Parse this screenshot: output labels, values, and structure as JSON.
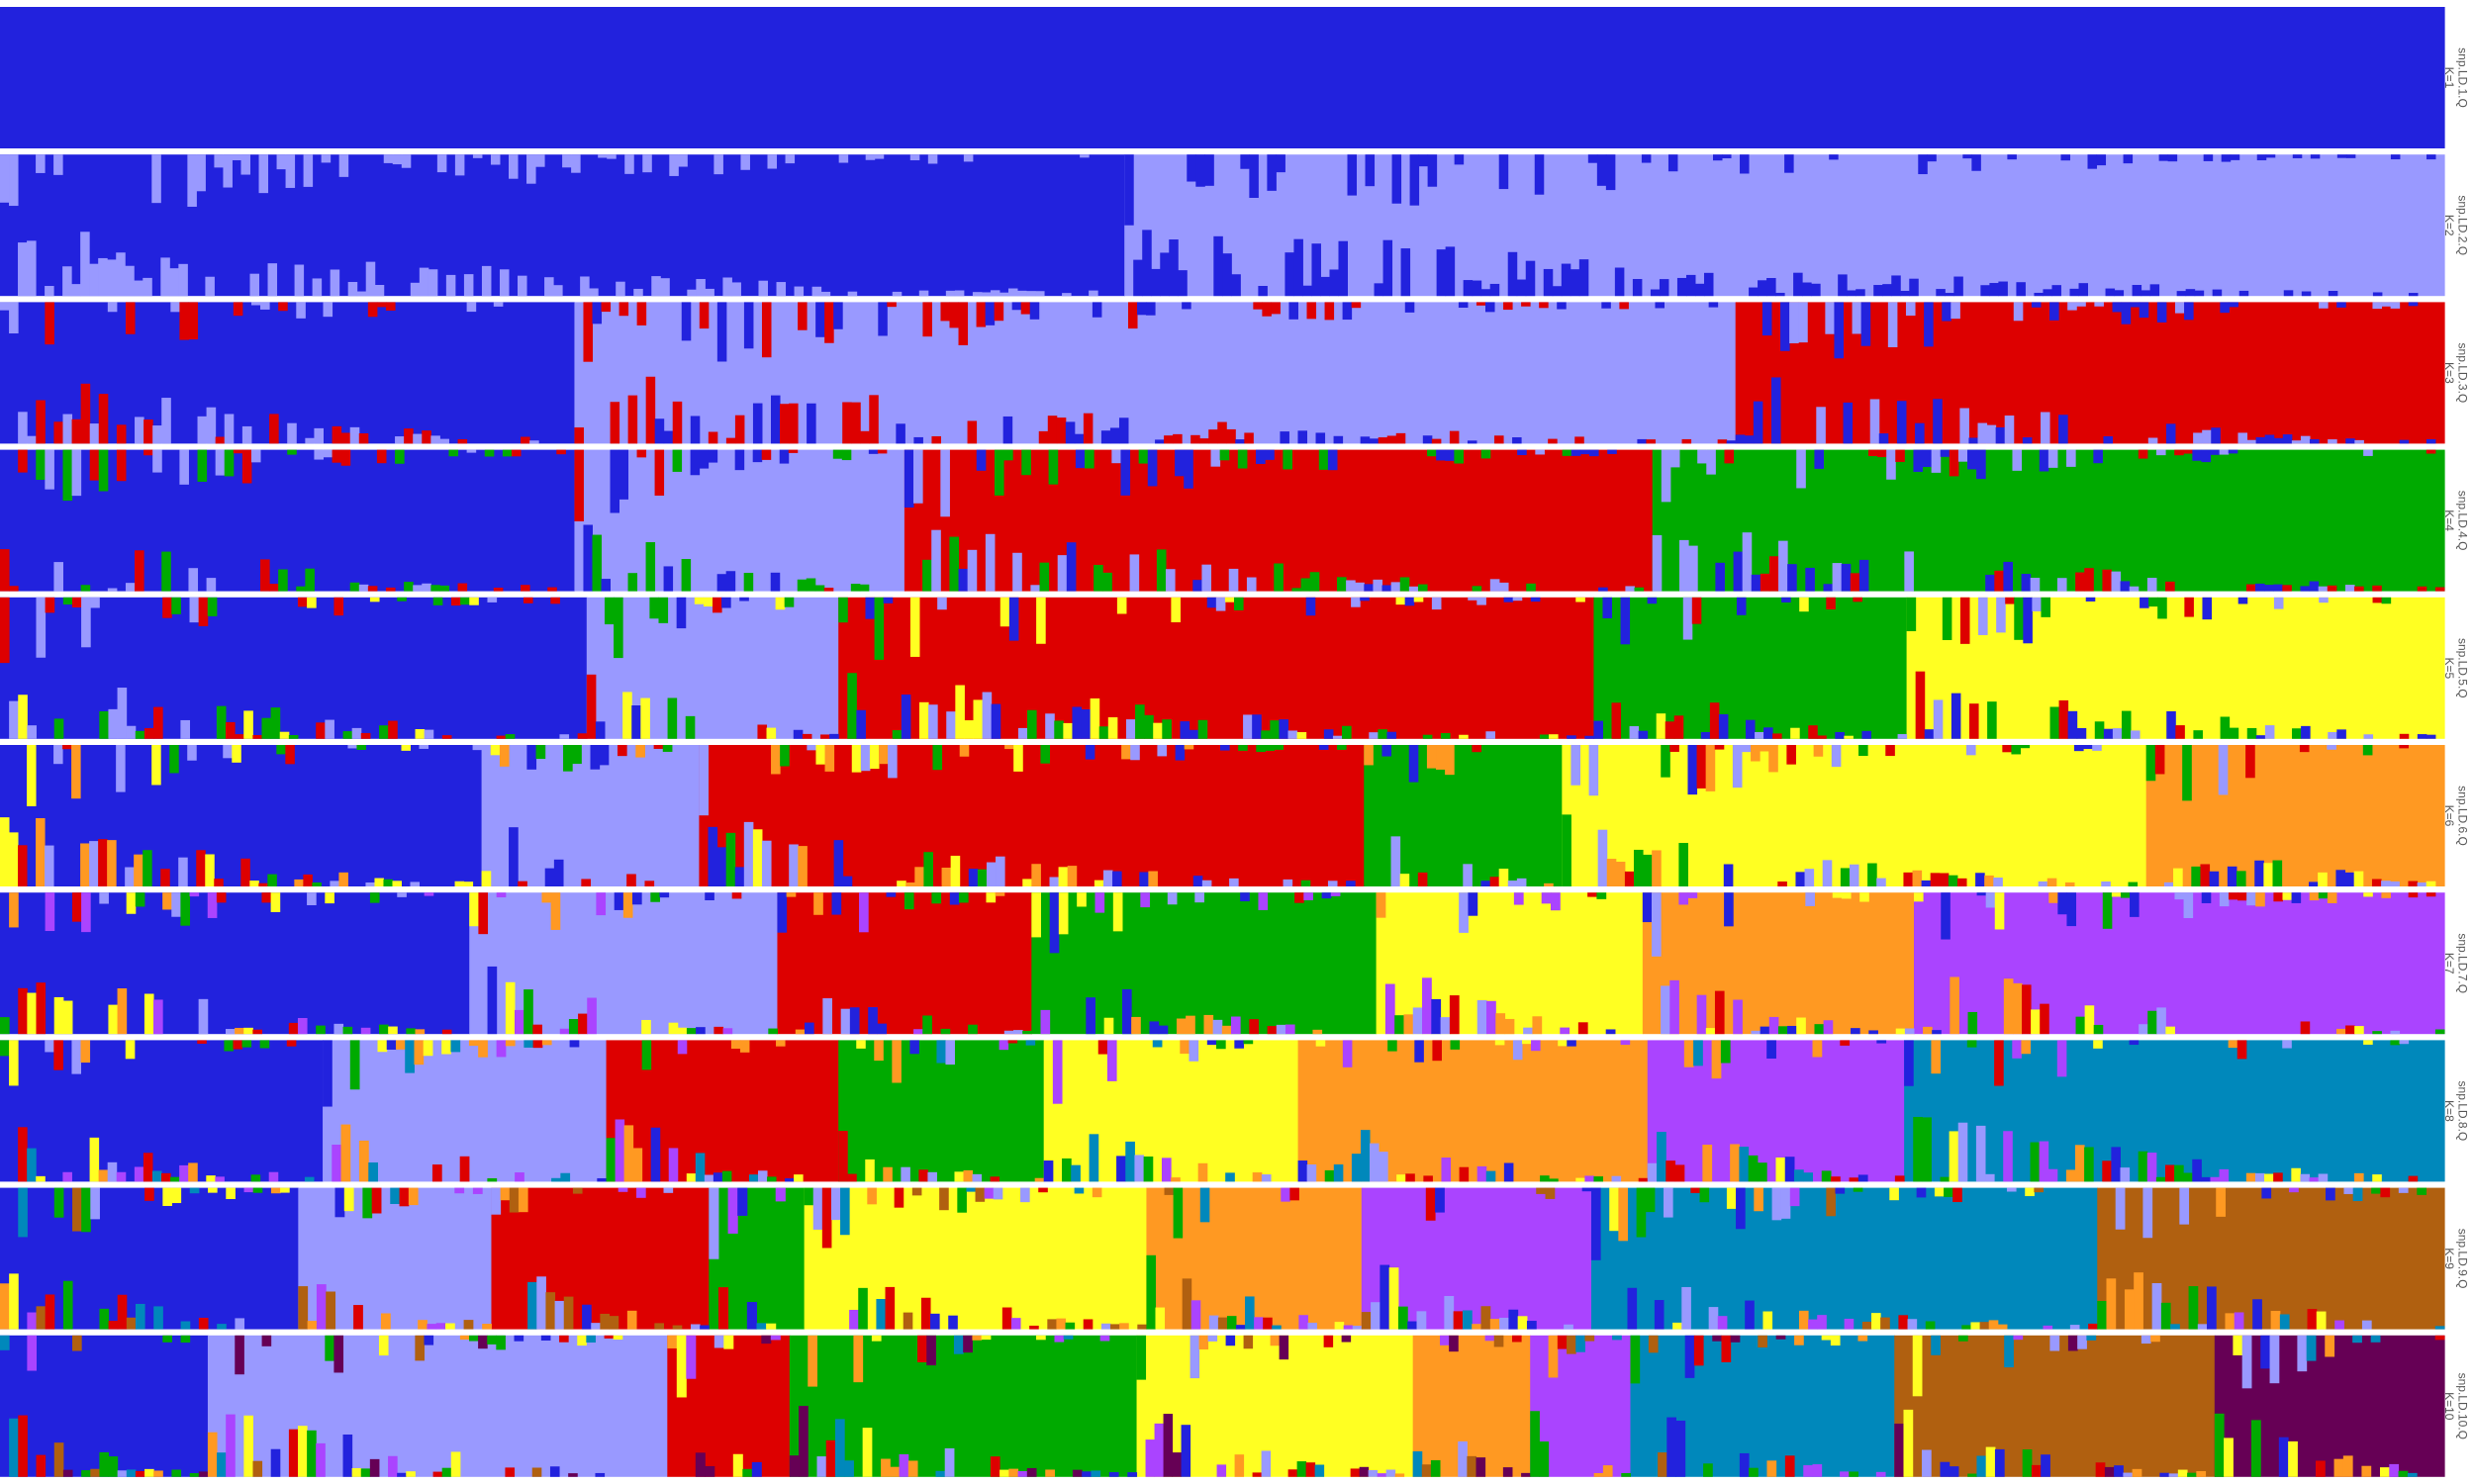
{
  "chart_data": {
    "type": "stacked bar (admixture barplot)",
    "cluster_colors": [
      "#2222dd",
      "#9999ff",
      "#dd0000",
      "#00aa00",
      "#ffff22",
      "#ff9922",
      "#aa44ff",
      "#0088bb",
      "#b06010",
      "#660055"
    ],
    "panels": [
      {
        "file": "snp.LD.1.Q",
        "k": "K=1",
        "segments": [
          {
            "start": 0.0,
            "end": 1.0,
            "cluster": 0
          }
        ]
      },
      {
        "file": "snp.LD.2.Q",
        "k": "K=2",
        "segments": [
          {
            "start": 0.0,
            "end": 0.46,
            "cluster": 0
          },
          {
            "start": 0.46,
            "end": 1.0,
            "cluster": 1
          }
        ]
      },
      {
        "file": "snp.LD.3.Q",
        "k": "K=3",
        "segments": [
          {
            "start": 0.0,
            "end": 0.235,
            "cluster": 0
          },
          {
            "start": 0.235,
            "end": 0.71,
            "cluster": 1
          },
          {
            "start": 0.71,
            "end": 1.0,
            "cluster": 2
          }
        ]
      },
      {
        "file": "snp.LD.4.Q",
        "k": "K=4",
        "segments": [
          {
            "start": 0.0,
            "end": 0.235,
            "cluster": 0
          },
          {
            "start": 0.235,
            "end": 0.37,
            "cluster": 1
          },
          {
            "start": 0.37,
            "end": 0.676,
            "cluster": 2
          },
          {
            "start": 0.676,
            "end": 1.0,
            "cluster": 3
          }
        ]
      },
      {
        "file": "snp.LD.5.Q",
        "k": "K=5",
        "segments": [
          {
            "start": 0.0,
            "end": 0.24,
            "cluster": 0
          },
          {
            "start": 0.24,
            "end": 0.343,
            "cluster": 1
          },
          {
            "start": 0.343,
            "end": 0.652,
            "cluster": 2
          },
          {
            "start": 0.652,
            "end": 0.78,
            "cluster": 3
          },
          {
            "start": 0.78,
            "end": 1.0,
            "cluster": 4
          }
        ]
      },
      {
        "file": "snp.LD.6.Q",
        "k": "K=6",
        "segments": [
          {
            "start": 0.0,
            "end": 0.197,
            "cluster": 0
          },
          {
            "start": 0.197,
            "end": 0.286,
            "cluster": 1
          },
          {
            "start": 0.286,
            "end": 0.558,
            "cluster": 2
          },
          {
            "start": 0.558,
            "end": 0.639,
            "cluster": 3
          },
          {
            "start": 0.639,
            "end": 0.878,
            "cluster": 4
          },
          {
            "start": 0.878,
            "end": 1.0,
            "cluster": 5
          }
        ]
      },
      {
        "file": "snp.LD.7.Q",
        "k": "K=7",
        "segments": [
          {
            "start": 0.0,
            "end": 0.192,
            "cluster": 0
          },
          {
            "start": 0.192,
            "end": 0.318,
            "cluster": 1
          },
          {
            "start": 0.318,
            "end": 0.422,
            "cluster": 2
          },
          {
            "start": 0.422,
            "end": 0.563,
            "cluster": 3
          },
          {
            "start": 0.563,
            "end": 0.672,
            "cluster": 4
          },
          {
            "start": 0.672,
            "end": 0.783,
            "cluster": 5
          },
          {
            "start": 0.783,
            "end": 1.0,
            "cluster": 6
          }
        ]
      },
      {
        "file": "snp.LD.8.Q",
        "k": "K=8",
        "segments": [
          {
            "start": 0.0,
            "end": 0.132,
            "cluster": 0
          },
          {
            "start": 0.132,
            "end": 0.248,
            "cluster": 1
          },
          {
            "start": 0.248,
            "end": 0.343,
            "cluster": 2
          },
          {
            "start": 0.343,
            "end": 0.427,
            "cluster": 3
          },
          {
            "start": 0.427,
            "end": 0.531,
            "cluster": 4
          },
          {
            "start": 0.531,
            "end": 0.674,
            "cluster": 5
          },
          {
            "start": 0.674,
            "end": 0.779,
            "cluster": 6
          },
          {
            "start": 0.779,
            "end": 1.0,
            "cluster": 7
          }
        ]
      },
      {
        "file": "snp.LD.9.Q",
        "k": "K=9",
        "segments": [
          {
            "start": 0.0,
            "end": 0.122,
            "cluster": 0
          },
          {
            "start": 0.122,
            "end": 0.201,
            "cluster": 1
          },
          {
            "start": 0.201,
            "end": 0.29,
            "cluster": 2
          },
          {
            "start": 0.29,
            "end": 0.329,
            "cluster": 3
          },
          {
            "start": 0.329,
            "end": 0.469,
            "cluster": 4
          },
          {
            "start": 0.469,
            "end": 0.557,
            "cluster": 5
          },
          {
            "start": 0.557,
            "end": 0.651,
            "cluster": 6
          },
          {
            "start": 0.651,
            "end": 0.858,
            "cluster": 7
          },
          {
            "start": 0.858,
            "end": 1.0,
            "cluster": 8
          }
        ]
      },
      {
        "file": "snp.LD.10.Q",
        "k": "K=10",
        "segments": [
          {
            "start": 0.0,
            "end": 0.085,
            "cluster": 0
          },
          {
            "start": 0.085,
            "end": 0.273,
            "cluster": 1
          },
          {
            "start": 0.273,
            "end": 0.323,
            "cluster": 2
          },
          {
            "start": 0.323,
            "end": 0.465,
            "cluster": 3
          },
          {
            "start": 0.465,
            "end": 0.578,
            "cluster": 4
          },
          {
            "start": 0.578,
            "end": 0.626,
            "cluster": 5
          },
          {
            "start": 0.626,
            "end": 0.667,
            "cluster": 6
          },
          {
            "start": 0.667,
            "end": 0.775,
            "cluster": 7
          },
          {
            "start": 0.775,
            "end": 0.906,
            "cluster": 8
          },
          {
            "start": 0.906,
            "end": 1.0,
            "cluster": 9
          }
        ]
      }
    ],
    "xlabel": "",
    "ylabel": "",
    "ylim": [
      0,
      1
    ],
    "legend": "none",
    "grid": false
  }
}
